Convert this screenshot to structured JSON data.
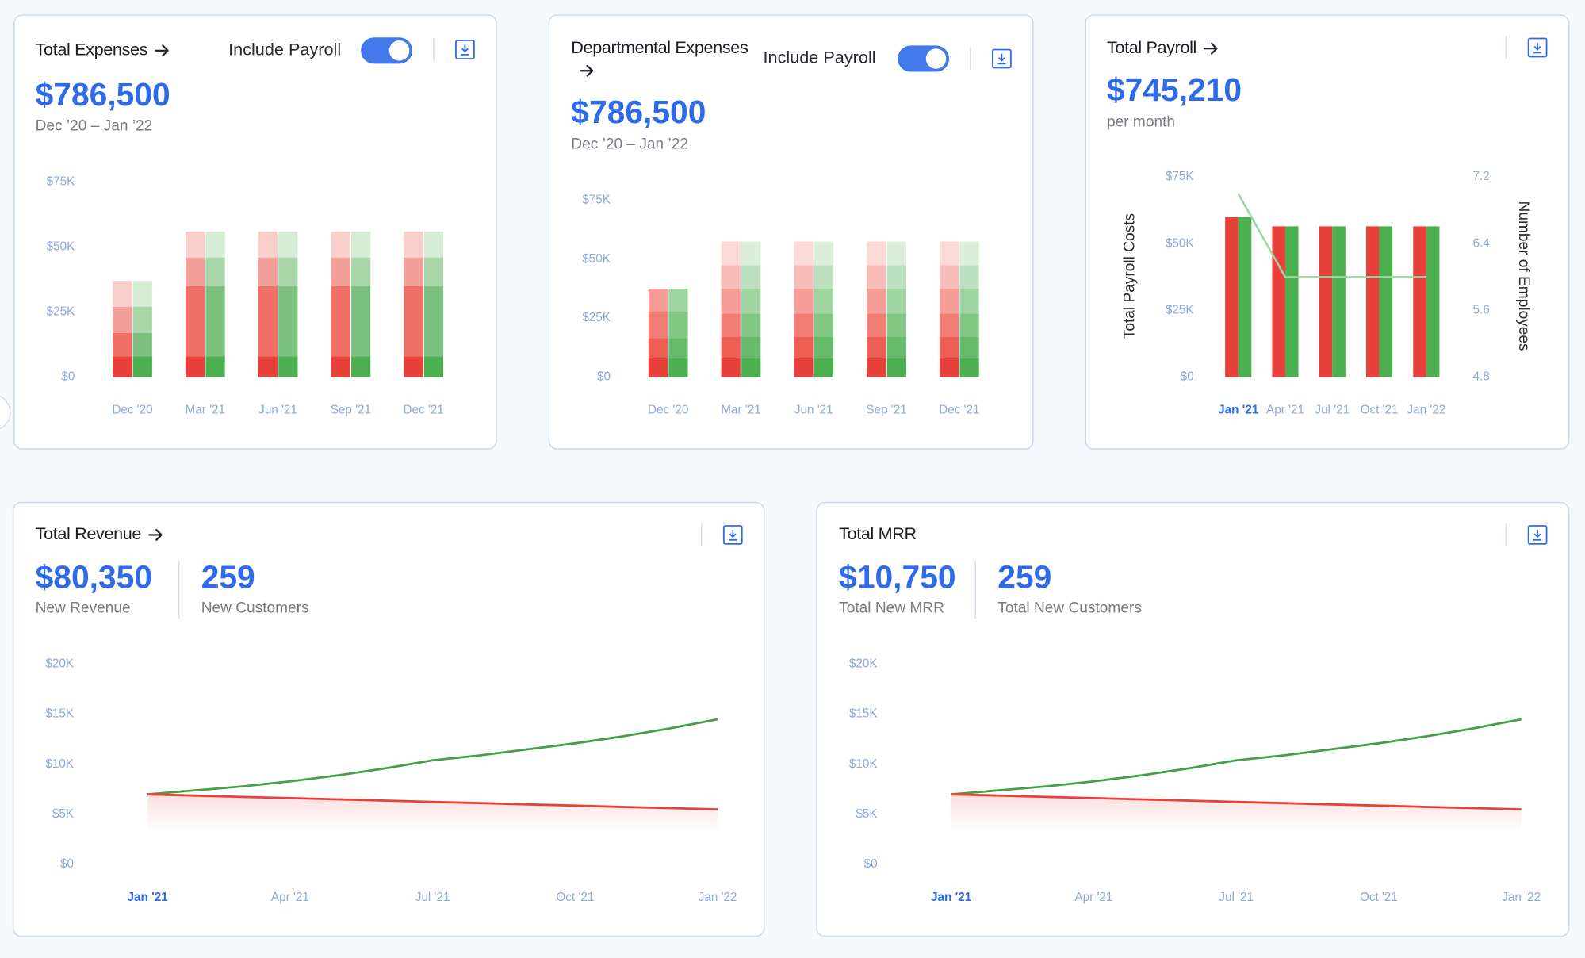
{
  "chart_data": [
    {
      "type": "stacked_bar",
      "title": "Total Expenses",
      "toggle_label": "Include Payroll",
      "toggle_on": true,
      "kpi": "$786,500",
      "kpi_caption": "Dec ’20 – Jan ’22",
      "categories": [
        "Dec '20",
        "Mar '21",
        "Jun '21",
        "Sep '21",
        "Dec '21"
      ],
      "stacks": [
        {
          "series": [
            {
              "color": "#e8403a",
              "values": [
                8000,
                8000,
                8000,
                8000,
                8000
              ]
            },
            {
              "color": "#f07066",
              "values": [
                9000,
                27000,
                27000,
                27000,
                27000
              ]
            },
            {
              "color": "#f4a09a",
              "values": [
                10000,
                11000,
                11000,
                11000,
                11000
              ]
            },
            {
              "color": "#f9cfcc",
              "values": [
                10000,
                10000,
                10000,
                10000,
                10000
              ]
            }
          ]
        },
        {
          "series": [
            {
              "color": "#4caf50",
              "values": [
                8000,
                8000,
                8000,
                8000,
                8000
              ]
            },
            {
              "color": "#7cc17f",
              "values": [
                9000,
                27000,
                27000,
                27000,
                27000
              ]
            },
            {
              "color": "#a8d6a9",
              "values": [
                10000,
                11000,
                11000,
                11000,
                11000
              ]
            },
            {
              "color": "#d4ebd4",
              "values": [
                10000,
                10000,
                10000,
                10000,
                10000
              ]
            }
          ]
        }
      ],
      "ylim": [
        0,
        75000
      ],
      "yticks": [
        {
          "value": 0,
          "label": "$0"
        },
        {
          "value": 25000,
          "label": "$25K"
        },
        {
          "value": 50000,
          "label": "$50K"
        },
        {
          "value": 75000,
          "label": "$75K"
        }
      ]
    },
    {
      "type": "stacked_bar",
      "title": "Departmental Expenses",
      "toggle_label": "Include Payroll",
      "toggle_on": true,
      "kpi": "$786,500",
      "kpi_caption": "Dec ’20 – Jan ’22",
      "categories": [
        "Dec '20",
        "Mar '21",
        "Jun '21",
        "Sep '21",
        "Dec '21"
      ],
      "stacks": [
        {
          "series": [
            {
              "color": "#e8403a",
              "values": [
                8000,
                8000,
                8000,
                8000,
                8000
              ]
            },
            {
              "color": "#ee5e55",
              "values": [
                8500,
                9000,
                9000,
                9000,
                9000
              ]
            },
            {
              "color": "#f27d74",
              "values": [
                11500,
                10000,
                10000,
                10000,
                10000
              ]
            },
            {
              "color": "#f59d96",
              "values": [
                9500,
                10500,
                10500,
                10500,
                10500
              ]
            },
            {
              "color": "#f8bcb8",
              "values": [
                0,
                10000,
                10000,
                10000,
                10000
              ]
            },
            {
              "color": "#fbdad8",
              "values": [
                0,
                10000,
                10000,
                10000,
                10000
              ]
            }
          ]
        },
        {
          "series": [
            {
              "color": "#4caf50",
              "values": [
                8000,
                8000,
                8000,
                8000,
                8000
              ]
            },
            {
              "color": "#66ba69",
              "values": [
                8500,
                9000,
                9000,
                9000,
                9000
              ]
            },
            {
              "color": "#82c784",
              "values": [
                11500,
                10000,
                10000,
                10000,
                10000
              ]
            },
            {
              "color": "#a0d4a1",
              "values": [
                9500,
                10500,
                10500,
                10500,
                10500
              ]
            },
            {
              "color": "#bde1be",
              "values": [
                0,
                10000,
                10000,
                10000,
                10000
              ]
            },
            {
              "color": "#dbefdb",
              "values": [
                0,
                10000,
                10000,
                10000,
                10000
              ]
            }
          ]
        }
      ],
      "ylim": [
        0,
        75000
      ],
      "yticks": [
        {
          "value": 0,
          "label": "$0"
        },
        {
          "value": 25000,
          "label": "$25K"
        },
        {
          "value": 50000,
          "label": "$50K"
        },
        {
          "value": 75000,
          "label": "$75K"
        }
      ]
    },
    {
      "type": "bar_line",
      "title": "Total Payroll",
      "kpi": "$745,210",
      "kpi_caption": "per month",
      "y_axis_title": "Total Payroll Costs",
      "y2_axis_title": "Number of Employees",
      "categories": [
        "Jan '21",
        "Apr '21",
        "Jul '21",
        "Oct '21",
        "Jan '22"
      ],
      "highlight_index": 0,
      "series": [
        {
          "color": "#e8403a",
          "values": [
            60000,
            56500,
            56500,
            56500,
            56500
          ]
        },
        {
          "color": "#4caf50",
          "values": [
            60000,
            56500,
            56500,
            56500,
            56500
          ]
        },
        {
          "type": "line",
          "axis": "y2",
          "color": "#9bd6a3",
          "values": [
            7,
            6,
            6,
            6,
            6
          ]
        }
      ],
      "ylim": [
        0,
        75000
      ],
      "yticks": [
        {
          "value": 0,
          "label": "$0"
        },
        {
          "value": 25000,
          "label": "$25K"
        },
        {
          "value": 50000,
          "label": "$50K"
        },
        {
          "value": 75000,
          "label": "$75K"
        }
      ],
      "y2lim": [
        4.8,
        7.2
      ],
      "y2ticks": [
        4.8,
        5.6,
        6.4,
        7.2
      ]
    },
    {
      "type": "line",
      "title": "Total Revenue",
      "kpi": "$80,350",
      "kpi_caption": "New Revenue",
      "kpi2": "259",
      "kpi2_caption": "New Customers",
      "categories": [
        "Jan '21",
        null,
        null,
        "Apr '21",
        null,
        null,
        "Jul '21",
        null,
        null,
        "Oct '21",
        null,
        null,
        "Jan '22"
      ],
      "highlight_index": 0,
      "series": [
        {
          "color": "#43a047",
          "values": [
            7000,
            7400,
            7800,
            8300,
            8900,
            9600,
            10400,
            10900,
            11500,
            12100,
            12800,
            13600,
            14500
          ]
        },
        {
          "color": "#e8403a",
          "area": true,
          "values": [
            7000,
            6880,
            6750,
            6630,
            6500,
            6380,
            6250,
            6130,
            6000,
            5880,
            5750,
            5630,
            5500
          ]
        }
      ],
      "ylim": [
        0,
        20000
      ],
      "yticks": [
        {
          "value": 0,
          "label": "$0"
        },
        {
          "value": 5000,
          "label": "$5K"
        },
        {
          "value": 10000,
          "label": "$10K"
        },
        {
          "value": 15000,
          "label": "$15K"
        },
        {
          "value": 20000,
          "label": "$20K"
        }
      ]
    },
    {
      "type": "line",
      "title": "Total MRR",
      "kpi": "$10,750",
      "kpi_caption": "Total New MRR",
      "kpi2": "259",
      "kpi2_caption": "Total New Customers",
      "categories": [
        "Jan '21",
        null,
        null,
        "Apr '21",
        null,
        null,
        "Jul '21",
        null,
        null,
        "Oct '21",
        null,
        null,
        "Jan '22"
      ],
      "highlight_index": 0,
      "series": [
        {
          "color": "#43a047",
          "values": [
            7000,
            7400,
            7800,
            8300,
            8900,
            9600,
            10400,
            10900,
            11500,
            12100,
            12800,
            13600,
            14500
          ]
        },
        {
          "color": "#e8403a",
          "area": true,
          "values": [
            7000,
            6880,
            6750,
            6630,
            6500,
            6380,
            6250,
            6130,
            6000,
            5880,
            5750,
            5630,
            5500
          ]
        }
      ],
      "ylim": [
        0,
        20000
      ],
      "yticks": [
        {
          "value": 0,
          "label": "$0"
        },
        {
          "value": 5000,
          "label": "$5K"
        },
        {
          "value": 10000,
          "label": "$10K"
        },
        {
          "value": 15000,
          "label": "$15K"
        },
        {
          "value": 20000,
          "label": "$20K"
        }
      ]
    }
  ]
}
